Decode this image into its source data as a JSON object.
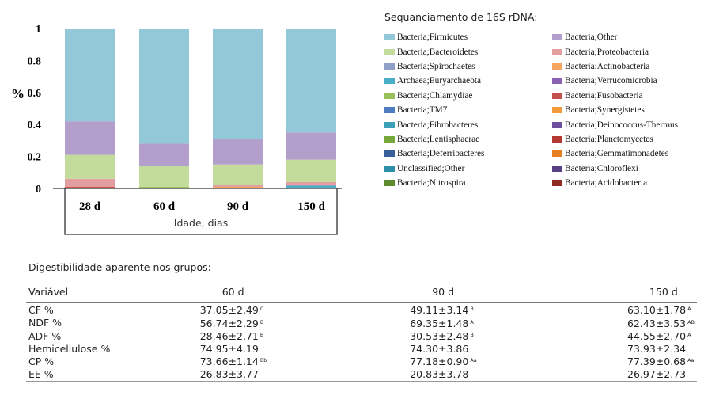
{
  "chart_data": {
    "type": "bar",
    "stacked": true,
    "categories": [
      "28 d",
      "60 d",
      "90 d",
      "150 d"
    ],
    "ylabel": "%",
    "xlabel": "Idade, dias",
    "ylim": [
      0,
      1
    ],
    "yticks": [
      "0",
      "0.2",
      "0.4",
      "0.6",
      "0.8",
      "1"
    ],
    "grid": false,
    "legend_title": "Sequanciamento de 16S rDNA:",
    "legend_placement": "right",
    "series": [
      {
        "name": "Bacteria;Firmicutes",
        "color": "#93c8d8",
        "values": [
          0.58,
          0.72,
          0.69,
          0.65
        ]
      },
      {
        "name": "Bacteria;Other",
        "color": "#b29fcb",
        "values": [
          0.21,
          0.14,
          0.16,
          0.17
        ]
      },
      {
        "name": "Bacteria;Bacteroidetes",
        "color": "#c3dc9b",
        "values": [
          0.15,
          0.13,
          0.13,
          0.14
        ]
      },
      {
        "name": "Bacteria;Proteobacteria",
        "color": "#e39f9f",
        "values": [
          0.05,
          0.0,
          0.01,
          0.02
        ]
      },
      {
        "name": "Bacteria;Spirochaetes",
        "color": "#8ea0c8",
        "values": [
          0.0,
          0.0,
          0.0,
          0.005
        ]
      },
      {
        "name": "Bacteria;Actinobacteria",
        "color": "#f6a65f",
        "values": [
          0.0,
          0.0,
          0.005,
          0.0
        ]
      },
      {
        "name": "Archaea;Euryarchaeota",
        "color": "#4aaec9",
        "values": [
          0.0,
          0.0,
          0.0,
          0.01
        ]
      },
      {
        "name": "Bacteria;Verrucomicrobia",
        "color": "#8a62b4",
        "values": [
          0.0,
          0.0,
          0.0,
          0.0
        ]
      },
      {
        "name": "Bacteria;Chlamydiae",
        "color": "#9bc25a",
        "values": [
          0.0,
          0.01,
          0.0,
          0.0
        ]
      },
      {
        "name": "Bacteria;Fusobacteria",
        "color": "#c4504d",
        "values": [
          0.01,
          0.0,
          0.005,
          0.005
        ]
      },
      {
        "name": "Bacteria;TM7",
        "color": "#4e7cc0",
        "values": [
          0.0,
          0.0,
          0.0,
          0.0
        ]
      },
      {
        "name": "Bacteria;Synergistetes",
        "color": "#f29a3c",
        "values": [
          0.0,
          0.0,
          0.0,
          0.0
        ]
      },
      {
        "name": "Bacteria;Fibrobacteres",
        "color": "#3aa1b9",
        "values": [
          0.0,
          0.0,
          0.0,
          0.0
        ]
      },
      {
        "name": "Bacteria;Deinococcus-Thermus",
        "color": "#6c4f9e",
        "values": [
          0.0,
          0.0,
          0.0,
          0.0
        ]
      },
      {
        "name": "Bacteria;Lentisphaerae",
        "color": "#77a83c",
        "values": [
          0.0,
          0.0,
          0.0,
          0.0
        ]
      },
      {
        "name": "Bacteria;Planctomycetes",
        "color": "#b33a33",
        "values": [
          0.0,
          0.0,
          0.0,
          0.0
        ]
      },
      {
        "name": "Bacteria;Deferribacteres",
        "color": "#3b5f9b",
        "values": [
          0.0,
          0.0,
          0.0,
          0.0
        ]
      },
      {
        "name": "Bacteria;Gemmatimonadetes",
        "color": "#e67e22",
        "values": [
          0.0,
          0.0,
          0.0,
          0.0
        ]
      },
      {
        "name": "Unclassified;Other",
        "color": "#2e8fa8",
        "values": [
          0.0,
          0.0,
          0.0,
          0.0
        ]
      },
      {
        "name": "Bacteria;Chloroflexi",
        "color": "#574085",
        "values": [
          0.0,
          0.0,
          0.0,
          0.0
        ]
      },
      {
        "name": "Bacteria;Nitrospira",
        "color": "#5f8a2e",
        "values": [
          0.0,
          0.0,
          0.0,
          0.0
        ]
      },
      {
        "name": "Bacteria;Acidobacteria",
        "color": "#8f2a24",
        "values": [
          0.0,
          0.0,
          0.0,
          0.0
        ]
      }
    ]
  },
  "table": {
    "title": "Digestibilidade aparente nos grupos:",
    "headers": [
      "Variável",
      "60 d",
      "90 d",
      "150 d"
    ],
    "rows": [
      {
        "variable": "CF %",
        "cells": [
          {
            "v": "37.05±2.49",
            "s": "C"
          },
          {
            "v": "49.11±3.14",
            "s": "B"
          },
          {
            "v": "63.10±1.78",
            "s": "A"
          }
        ]
      },
      {
        "variable": "NDF %",
        "cells": [
          {
            "v": "56.74±2.29",
            "s": "B"
          },
          {
            "v": "69.35±1.48",
            "s": "A"
          },
          {
            "v": "62.43±3.53",
            "s": "AB"
          }
        ]
      },
      {
        "variable": "ADF %",
        "cells": [
          {
            "v": "28.46±2.71",
            "s": "B"
          },
          {
            "v": "30.53±2.48",
            "s": "B"
          },
          {
            "v": "44.55±2.70",
            "s": "A"
          }
        ]
      },
      {
        "variable": "Hemicellulose %",
        "cells": [
          {
            "v": "74.95±4.19",
            "s": ""
          },
          {
            "v": "74.30±3.86",
            "s": ""
          },
          {
            "v": "73.93±2.34",
            "s": ""
          }
        ]
      },
      {
        "variable": "CP %",
        "cells": [
          {
            "v": "73.66±1.14",
            "s": "Bb"
          },
          {
            "v": "77.18±0.90",
            "s": "Aa"
          },
          {
            "v": "77.39±0.68",
            "s": "Aa"
          }
        ]
      },
      {
        "variable": "EE %",
        "cells": [
          {
            "v": "26.83±3.77",
            "s": ""
          },
          {
            "v": "20.83±3.78",
            "s": ""
          },
          {
            "v": "26.97±2.73",
            "s": ""
          }
        ]
      }
    ]
  }
}
